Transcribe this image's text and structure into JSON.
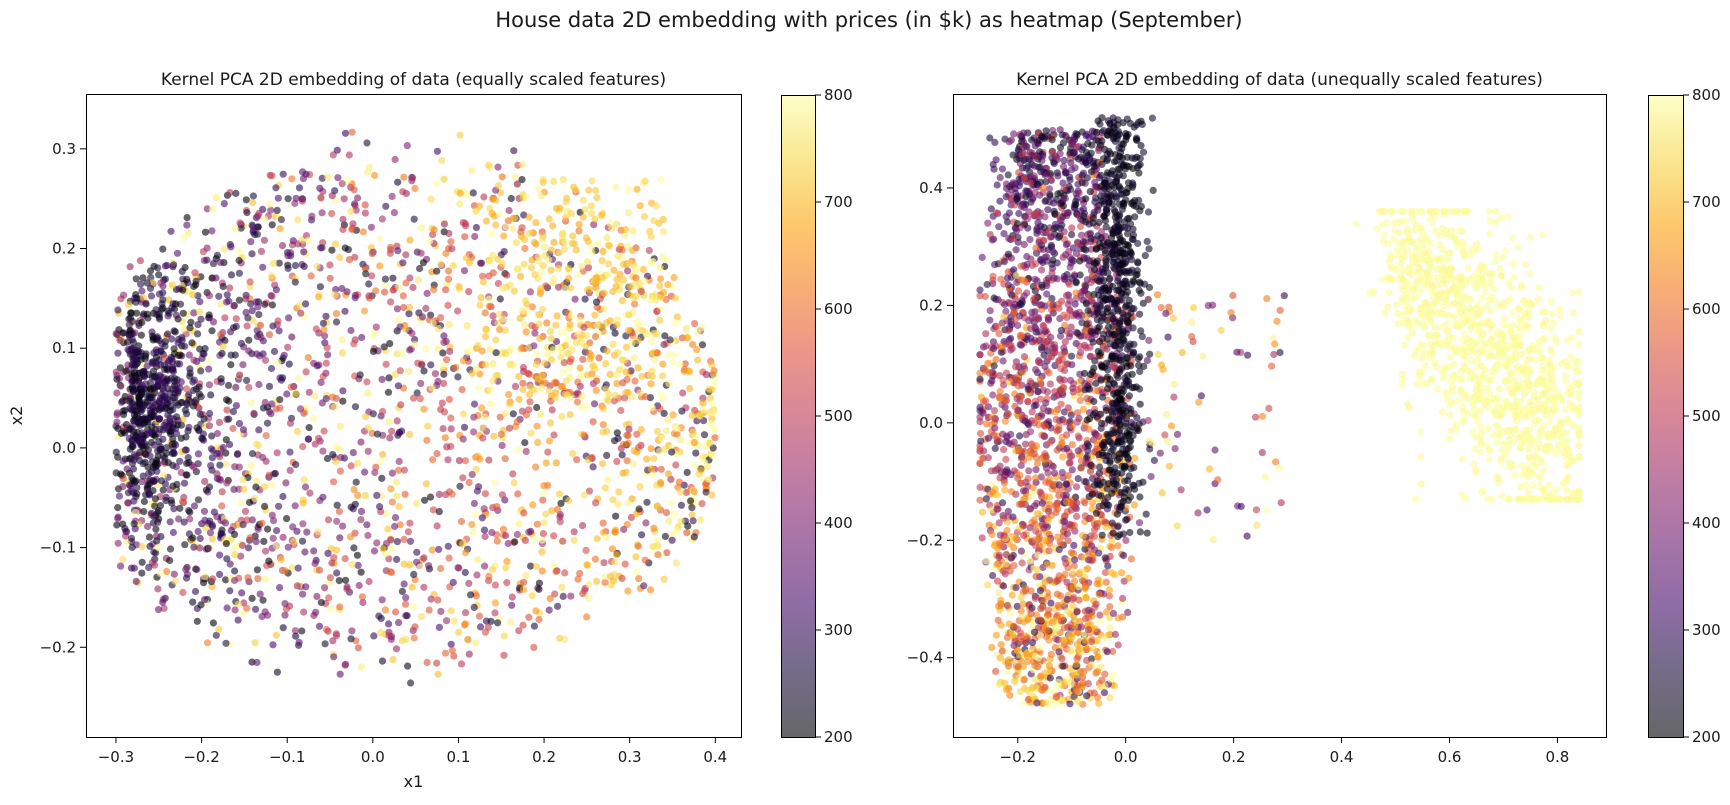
{
  "figure": {
    "suptitle": "House data 2D embedding with prices (in $k) as heatmap (September)"
  },
  "chart_data": [
    {
      "type": "scatter",
      "title": "Kernel PCA 2D embedding of data (equally scaled features)",
      "xlabel": "x1",
      "ylabel": "x2",
      "xlim": [
        -0.335,
        0.43
      ],
      "ylim": [
        -0.29,
        0.355
      ],
      "xticks": [
        -0.3,
        -0.2,
        -0.1,
        0.0,
        0.1,
        0.2,
        0.3,
        0.4
      ],
      "xticklabels": [
        "−0.3",
        "−0.2",
        "−0.1",
        "0.0",
        "0.1",
        "0.2",
        "0.3",
        "0.4"
      ],
      "yticks": [
        -0.2,
        -0.1,
        0.0,
        0.1,
        0.2,
        0.3
      ],
      "yticklabels": [
        "−0.2",
        "−0.1",
        "0.0",
        "0.1",
        "0.2",
        "0.3"
      ],
      "colormap": "inferno",
      "marker_alpha": 0.6,
      "color_range": [
        200,
        800
      ],
      "colorbar_ticks": [
        200,
        300,
        400,
        500,
        600,
        700,
        800
      ],
      "colorbar_ticklabels": [
        "200",
        "300",
        "400",
        "500",
        "600",
        "700",
        "800"
      ],
      "grid": false,
      "point_clouds": [
        {
          "note": "main cloud",
          "x_range": [
            -0.3,
            0.4
          ],
          "y_range": [
            -0.26,
            0.32
          ],
          "price_trend": "increases with x1",
          "price_range": [
            250,
            800
          ]
        },
        {
          "note": "dense dark cluster",
          "center": [
            -0.28,
            0.05
          ],
          "price_range": [
            200,
            320
          ]
        },
        {
          "note": "yellow upper-right region",
          "center": [
            0.2,
            0.2
          ],
          "price_range": [
            650,
            800
          ]
        }
      ],
      "representative_points": [
        {
          "x": -0.3,
          "y": 0.02,
          "value": 210
        },
        {
          "x": -0.25,
          "y": 0.08,
          "value": 240
        },
        {
          "x": -0.2,
          "y": -0.05,
          "value": 320
        },
        {
          "x": -0.1,
          "y": 0.12,
          "value": 330
        },
        {
          "x": 0.0,
          "y": 0.0,
          "value": 420
        },
        {
          "x": 0.05,
          "y": -0.2,
          "value": 500
        },
        {
          "x": 0.1,
          "y": 0.25,
          "value": 700
        },
        {
          "x": 0.2,
          "y": 0.1,
          "value": 640
        },
        {
          "x": 0.3,
          "y": -0.05,
          "value": 600
        },
        {
          "x": 0.35,
          "y": 0.1,
          "value": 780
        },
        {
          "x": 0.4,
          "y": 0.13,
          "value": 660
        }
      ]
    },
    {
      "type": "scatter",
      "title": "Kernel PCA 2D embedding of data (unequally scaled features)",
      "xlabel": "",
      "ylabel": "",
      "xlim": [
        -0.32,
        0.89
      ],
      "ylim": [
        -0.535,
        0.56
      ],
      "xticks": [
        -0.2,
        0.0,
        0.2,
        0.4,
        0.6,
        0.8
      ],
      "xticklabels": [
        "−0.2",
        "0.0",
        "0.2",
        "0.4",
        "0.6",
        "0.8"
      ],
      "yticks": [
        -0.4,
        -0.2,
        0.0,
        0.2,
        0.4
      ],
      "yticklabels": [
        "−0.4",
        "−0.2",
        "0.0",
        "0.2",
        "0.4"
      ],
      "colormap": "inferno",
      "marker_alpha": 0.6,
      "color_range": [
        200,
        800
      ],
      "colorbar_ticks": [
        200,
        300,
        400,
        500,
        600,
        700,
        800
      ],
      "colorbar_ticklabels": [
        "200",
        "300",
        "400",
        "500",
        "600",
        "700",
        "800"
      ],
      "grid": false,
      "point_clouds": [
        {
          "note": "left band",
          "x_range": [
            -0.27,
            0.08
          ],
          "y_range": [
            -0.49,
            0.5
          ],
          "price_range": [
            280,
            800
          ]
        },
        {
          "note": "dark strip",
          "x_range": [
            -0.05,
            0.02
          ],
          "y_range": [
            -0.2,
            0.52
          ],
          "price_range": [
            200,
            260
          ]
        },
        {
          "note": "scattered bridge",
          "x_range": [
            0.05,
            0.3
          ],
          "y_range": [
            -0.2,
            0.22
          ],
          "price_range": [
            300,
            780
          ]
        },
        {
          "note": "yellow right cluster",
          "x_range": [
            0.4,
            0.84
          ],
          "y_range": [
            -0.12,
            0.36
          ],
          "price_range": [
            780,
            800
          ]
        }
      ],
      "representative_points": [
        {
          "x": -0.2,
          "y": 0.4,
          "value": 320
        },
        {
          "x": -0.15,
          "y": 0.0,
          "value": 420
        },
        {
          "x": -0.1,
          "y": -0.3,
          "value": 640
        },
        {
          "x": -0.05,
          "y": -0.45,
          "value": 740
        },
        {
          "x": 0.0,
          "y": 0.5,
          "value": 220
        },
        {
          "x": 0.0,
          "y": 0.1,
          "value": 230
        },
        {
          "x": 0.22,
          "y": 0.04,
          "value": 280
        },
        {
          "x": 0.3,
          "y": 0.0,
          "value": 690
        },
        {
          "x": 0.6,
          "y": 0.2,
          "value": 800
        },
        {
          "x": 0.75,
          "y": 0.0,
          "value": 800
        },
        {
          "x": 0.82,
          "y": -0.03,
          "value": 800
        }
      ]
    }
  ]
}
